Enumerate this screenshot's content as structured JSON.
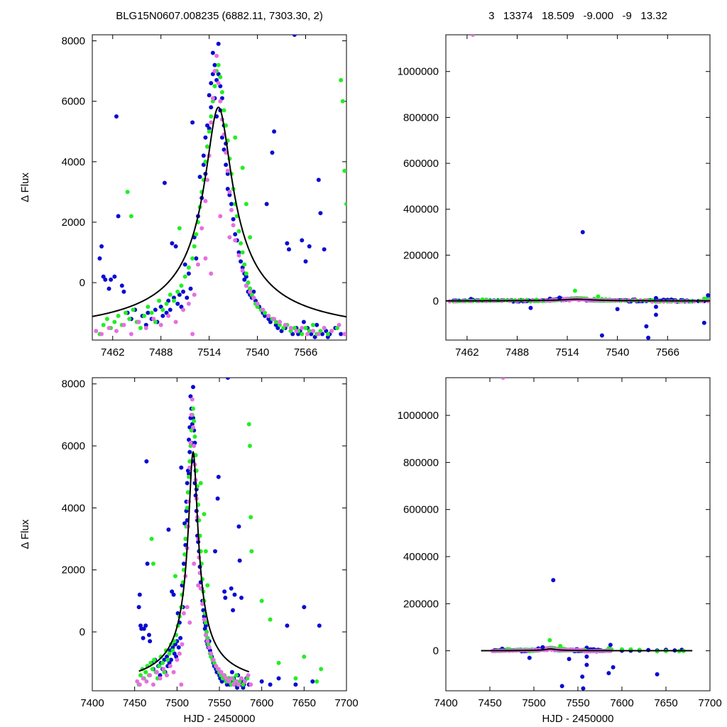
{
  "header": {
    "left_title": "BLG15N0607.008235 (6882.11, 7303.30,    2)",
    "right_title": "3   13374   18.509   -9.000   -9   13.32"
  },
  "chart_data": [
    {
      "id": "top-left",
      "type": "scatter",
      "ylabel": "Δ Flux",
      "xlabel": "",
      "xlim": [
        7451,
        7588
      ],
      "ylim": [
        -1900,
        8200
      ],
      "xticks": [
        7462,
        7488,
        7514,
        7540,
        7566
      ],
      "yticks": [
        0,
        2000,
        4000,
        6000,
        8000
      ],
      "legend": "none",
      "model_curve": true
    },
    {
      "id": "top-right",
      "type": "scatter",
      "ylabel": "",
      "xlabel": "",
      "xlim": [
        7451,
        7588
      ],
      "ylim": [
        -170000,
        1160000
      ],
      "xticks": [
        7462,
        7488,
        7514,
        7540,
        7566
      ],
      "yticks": [
        0,
        200000,
        400000,
        600000,
        800000,
        1000000
      ],
      "legend": "none",
      "model_curve": true
    },
    {
      "id": "bottom-left",
      "type": "scatter",
      "ylabel": "Δ Flux",
      "xlabel": "HJD - 2450000",
      "xlim": [
        7400,
        7700
      ],
      "ylim": [
        -1900,
        8200
      ],
      "xticks": [
        7400,
        7450,
        7500,
        7550,
        7600,
        7650,
        7700
      ],
      "yticks": [
        0,
        2000,
        4000,
        6000,
        8000
      ],
      "legend": "none",
      "model_curve": true
    },
    {
      "id": "bottom-right",
      "type": "scatter",
      "ylabel": "",
      "xlabel": "HJD - 2450000",
      "xlim": [
        7400,
        7700
      ],
      "ylim": [
        -170000,
        1160000
      ],
      "xticks": [
        7400,
        7450,
        7500,
        7550,
        7600,
        7650,
        7700
      ],
      "yticks": [
        0,
        200000,
        400000,
        600000,
        800000,
        1000000
      ],
      "legend": "none",
      "model_curve": true
    }
  ],
  "model": {
    "t0": 7519,
    "amplitude": 7700,
    "baseline": -1900,
    "u0": 0.33,
    "tE_zoom": 21,
    "tE_full": 16
  },
  "series_colors": {
    "series_a": "#0a0ad2",
    "series_b": "#22ee22",
    "series_c": "#e66fe0"
  },
  "series": [
    {
      "key": "series_a",
      "points": [
        [
          7455,
          800
        ],
        [
          7456,
          1200
        ],
        [
          7457,
          200
        ],
        [
          7458,
          100
        ],
        [
          7460,
          -200
        ],
        [
          7461,
          100
        ],
        [
          7463,
          200
        ],
        [
          7464,
          5500
        ],
        [
          7465,
          2200
        ],
        [
          7467,
          -100
        ],
        [
          7468,
          -300
        ],
        [
          7470,
          -1000
        ],
        [
          7472,
          -1200
        ],
        [
          7474,
          -900
        ],
        [
          7476,
          -1300
        ],
        [
          7478,
          -1100
        ],
        [
          7480,
          -1400
        ],
        [
          7481,
          -1000
        ],
        [
          7483,
          -1200
        ],
        [
          7485,
          -900
        ],
        [
          7486,
          -1300
        ],
        [
          7488,
          -800
        ],
        [
          7489,
          -1100
        ],
        [
          7490,
          3300
        ],
        [
          7491,
          -1000
        ],
        [
          7492,
          -600
        ],
        [
          7493,
          -900
        ],
        [
          7494,
          1300
        ],
        [
          7495,
          -500
        ],
        [
          7496,
          1200
        ],
        [
          7497,
          -700
        ],
        [
          7498,
          -400
        ],
        [
          7499,
          -800
        ],
        [
          7500,
          -300
        ],
        [
          7501,
          600
        ],
        [
          7502,
          -500
        ],
        [
          7503,
          300
        ],
        [
          7504,
          -200
        ],
        [
          7505,
          5300
        ],
        [
          7506,
          1500
        ],
        [
          7507,
          800
        ],
        [
          7508,
          2200
        ],
        [
          7509,
          3500
        ],
        [
          7510,
          2800
        ],
        [
          7511,
          4200
        ],
        [
          7511,
          3900
        ],
        [
          7512,
          4800
        ],
        [
          7512,
          3600
        ],
        [
          7513,
          5200
        ],
        [
          7513,
          4500
        ],
        [
          7514,
          6200
        ],
        [
          7514,
          5100
        ],
        [
          7515,
          6600
        ],
        [
          7515,
          5800
        ],
        [
          7516,
          7600
        ],
        [
          7516,
          6900
        ],
        [
          7517,
          7200
        ],
        [
          7517,
          6100
        ],
        [
          7518,
          6700
        ],
        [
          7518,
          5500
        ],
        [
          7519,
          6900
        ],
        [
          7519,
          7900
        ],
        [
          7520,
          6500
        ],
        [
          7520,
          5700
        ],
        [
          7521,
          6100
        ],
        [
          7521,
          4800
        ],
        [
          7522,
          5200
        ],
        [
          7522,
          4400
        ],
        [
          7523,
          4600
        ],
        [
          7523,
          3900
        ],
        [
          7524,
          3600
        ],
        [
          7524,
          3100
        ],
        [
          7525,
          2900
        ],
        [
          7526,
          2600
        ],
        [
          7527,
          2100
        ],
        [
          7528,
          1600
        ],
        [
          7529,
          1400
        ],
        [
          7530,
          1000
        ],
        [
          7531,
          700
        ],
        [
          7532,
          500
        ],
        [
          7533,
          300
        ],
        [
          7533,
          100
        ],
        [
          7534,
          200
        ],
        [
          7534,
          -100
        ],
        [
          7535,
          0
        ],
        [
          7535,
          -300
        ],
        [
          7536,
          -200
        ],
        [
          7536,
          -400
        ],
        [
          7537,
          -500
        ],
        [
          7538,
          -300
        ],
        [
          7539,
          -600
        ],
        [
          7540,
          -700
        ],
        [
          7541,
          -800
        ],
        [
          7542,
          -900
        ],
        [
          7543,
          -1000
        ],
        [
          7544,
          -1100
        ],
        [
          7545,
          2600
        ],
        [
          7546,
          -1200
        ],
        [
          7547,
          -1300
        ],
        [
          7548,
          4300
        ],
        [
          7549,
          5000
        ],
        [
          7550,
          -1400
        ],
        [
          7551,
          -1500
        ],
        [
          7552,
          -1300
        ],
        [
          7553,
          -1600
        ],
        [
          7555,
          -1500
        ],
        [
          7556,
          1300
        ],
        [
          7557,
          1100
        ],
        [
          7558,
          -1600
        ],
        [
          7559,
          -1700
        ],
        [
          7560,
          8200
        ],
        [
          7561,
          -1500
        ],
        [
          7562,
          -1700
        ],
        [
          7563,
          -1600
        ],
        [
          7564,
          1400
        ],
        [
          7565,
          -1300
        ],
        [
          7566,
          700
        ],
        [
          7567,
          -1500
        ],
        [
          7568,
          1200
        ],
        [
          7569,
          -1700
        ],
        [
          7570,
          -1600
        ],
        [
          7571,
          -1800
        ],
        [
          7572,
          -1400
        ],
        [
          7573,
          3400
        ],
        [
          7574,
          2300
        ],
        [
          7575,
          -1700
        ],
        [
          7576,
          1100
        ],
        [
          7577,
          -1600
        ],
        [
          7578,
          -1800
        ],
        [
          7579,
          -1700
        ],
        [
          7582,
          -1500
        ],
        [
          7585,
          -1700
        ],
        [
          7600,
          -1600
        ],
        [
          7610,
          -1700
        ],
        [
          7620,
          -1500
        ],
        [
          7630,
          200
        ],
        [
          7640,
          -1700
        ],
        [
          7650,
          800
        ],
        [
          7660,
          -1600
        ],
        [
          7668,
          200
        ]
      ]
    },
    {
      "key": "series_b",
      "points": [
        [
          7455,
          -1700
        ],
        [
          7457,
          -1400
        ],
        [
          7459,
          -1200
        ],
        [
          7461,
          -1500
        ],
        [
          7463,
          -1300
        ],
        [
          7465,
          -1100
        ],
        [
          7467,
          -1400
        ],
        [
          7469,
          -1000
        ],
        [
          7471,
          -1200
        ],
        [
          7473,
          -900
        ],
        [
          7475,
          -1300
        ],
        [
          7477,
          -1500
        ],
        [
          7479,
          -1100
        ],
        [
          7481,
          -800
        ],
        [
          7483,
          -1000
        ],
        [
          7485,
          -1300
        ],
        [
          7487,
          -600
        ],
        [
          7489,
          -900
        ],
        [
          7491,
          -700
        ],
        [
          7493,
          -400
        ],
        [
          7495,
          -600
        ],
        [
          7497,
          -300
        ],
        [
          7499,
          -100
        ],
        [
          7501,
          200
        ],
        [
          7503,
          500
        ],
        [
          7505,
          800
        ],
        [
          7506,
          1200
        ],
        [
          7507,
          1600
        ],
        [
          7508,
          2000
        ],
        [
          7509,
          2500
        ],
        [
          7510,
          3000
        ],
        [
          7511,
          3400
        ],
        [
          7512,
          4000
        ],
        [
          7513,
          4500
        ],
        [
          7514,
          5000
        ],
        [
          7515,
          5500
        ],
        [
          7516,
          6000
        ],
        [
          7517,
          6500
        ],
        [
          7518,
          7000
        ],
        [
          7519,
          7200
        ],
        [
          7520,
          6800
        ],
        [
          7521,
          6300
        ],
        [
          7522,
          5700
        ],
        [
          7523,
          5200
        ],
        [
          7524,
          4700
        ],
        [
          7525,
          4100
        ],
        [
          7526,
          3600
        ],
        [
          7527,
          3100
        ],
        [
          7528,
          2600
        ],
        [
          7529,
          2200
        ],
        [
          7530,
          1700
        ],
        [
          7531,
          1300
        ],
        [
          7532,
          1000
        ],
        [
          7533,
          600
        ],
        [
          7534,
          300
        ],
        [
          7535,
          0
        ],
        [
          7536,
          -200
        ],
        [
          7537,
          -400
        ],
        [
          7538,
          -500
        ],
        [
          7539,
          -700
        ],
        [
          7540,
          -800
        ],
        [
          7542,
          -900
        ],
        [
          7544,
          -1000
        ],
        [
          7546,
          -1100
        ],
        [
          7548,
          -1200
        ],
        [
          7550,
          -1300
        ],
        [
          7552,
          -1400
        ],
        [
          7554,
          -1500
        ],
        [
          7556,
          -1400
        ],
        [
          7558,
          -1600
        ],
        [
          7560,
          -1500
        ],
        [
          7562,
          -1600
        ],
        [
          7564,
          -1700
        ],
        [
          7566,
          -1500
        ],
        [
          7568,
          -1600
        ],
        [
          7570,
          -1400
        ],
        [
          7572,
          -1700
        ],
        [
          7574,
          -1600
        ],
        [
          7576,
          -1500
        ],
        [
          7578,
          -1700
        ],
        [
          7580,
          -1600
        ],
        [
          7583,
          -1500
        ],
        [
          7585,
          6700
        ],
        [
          7586,
          6000
        ],
        [
          7587,
          3700
        ],
        [
          7588,
          2600
        ],
        [
          7470,
          3000
        ],
        [
          7472,
          2200
        ],
        [
          7498,
          1800
        ],
        [
          7528,
          4800
        ],
        [
          7532,
          3800
        ],
        [
          7534,
          2600
        ],
        [
          7536,
          1500
        ],
        [
          7600,
          1000
        ],
        [
          7610,
          400
        ],
        [
          7620,
          -1000
        ],
        [
          7640,
          -1500
        ],
        [
          7650,
          -800
        ],
        [
          7665,
          -1600
        ],
        [
          7670,
          -1200
        ]
      ]
    },
    {
      "key": "series_c",
      "points": [
        [
          7453,
          -1600
        ],
        [
          7456,
          -1700
        ],
        [
          7460,
          -1500
        ],
        [
          7464,
          -1600
        ],
        [
          7468,
          -1400
        ],
        [
          7472,
          -1700
        ],
        [
          7476,
          -1300
        ],
        [
          7480,
          -1500
        ],
        [
          7484,
          -1200
        ],
        [
          7488,
          -1400
        ],
        [
          7492,
          -1100
        ],
        [
          7496,
          -1300
        ],
        [
          7500,
          -900
        ],
        [
          7503,
          -700
        ],
        [
          7506,
          -400
        ],
        [
          7508,
          600
        ],
        [
          7510,
          1800
        ],
        [
          7512,
          2700
        ],
        [
          7513,
          3400
        ],
        [
          7514,
          4200
        ],
        [
          7515,
          5300
        ],
        [
          7516,
          6100
        ],
        [
          7517,
          7000
        ],
        [
          7518,
          7500
        ],
        [
          7519,
          6600
        ],
        [
          7520,
          6000
        ],
        [
          7521,
          5400
        ],
        [
          7522,
          4900
        ],
        [
          7523,
          4300
        ],
        [
          7524,
          3700
        ],
        [
          7525,
          3000
        ],
        [
          7526,
          2400
        ],
        [
          7527,
          1900
        ],
        [
          7528,
          1400
        ],
        [
          7530,
          900
        ],
        [
          7532,
          400
        ],
        [
          7534,
          -100
        ],
        [
          7536,
          -300
        ],
        [
          7538,
          -500
        ],
        [
          7540,
          -700
        ],
        [
          7543,
          -900
        ],
        [
          7546,
          -1100
        ],
        [
          7549,
          -1200
        ],
        [
          7552,
          -1300
        ],
        [
          7555,
          -1400
        ],
        [
          7558,
          -1500
        ],
        [
          7561,
          -1600
        ],
        [
          7564,
          -1500
        ],
        [
          7567,
          -1700
        ],
        [
          7570,
          -1600
        ],
        [
          7573,
          -1700
        ],
        [
          7576,
          -1500
        ],
        [
          7580,
          -1600
        ],
        [
          7584,
          -1400
        ],
        [
          7587,
          -1700
        ],
        [
          7520,
          2200
        ],
        [
          7525,
          1500
        ],
        [
          7512,
          800
        ],
        [
          7515,
          300
        ],
        [
          7505,
          -1700
        ]
      ]
    }
  ],
  "outliers_full": [
    {
      "key": "series_c",
      "x": 7465,
      "y": 1160000
    },
    {
      "key": "series_a",
      "x": 7522,
      "y": 300000
    },
    {
      "key": "series_a",
      "x": 7532,
      "y": -150000
    },
    {
      "key": "series_a",
      "x": 7555,
      "y": -110000
    },
    {
      "key": "series_a",
      "x": 7556,
      "y": -160000
    },
    {
      "key": "series_a",
      "x": 7585,
      "y": -95000
    },
    {
      "key": "series_a",
      "x": 7495,
      "y": -30000
    },
    {
      "key": "series_a",
      "x": 7510,
      "y": 15000
    },
    {
      "key": "series_b",
      "x": 7518,
      "y": 45000
    },
    {
      "key": "series_a",
      "x": 7540,
      "y": -35000
    },
    {
      "key": "series_a",
      "x": 7560,
      "y": -25000
    },
    {
      "key": "series_a",
      "x": 7587,
      "y": 25000
    },
    {
      "key": "series_a",
      "x": 7590,
      "y": -70000
    },
    {
      "key": "series_a",
      "x": 7560,
      "y": -60000
    },
    {
      "key": "series_a",
      "x": 7640,
      "y": -100000
    },
    {
      "key": "series_b",
      "x": 7530,
      "y": 20000
    }
  ]
}
